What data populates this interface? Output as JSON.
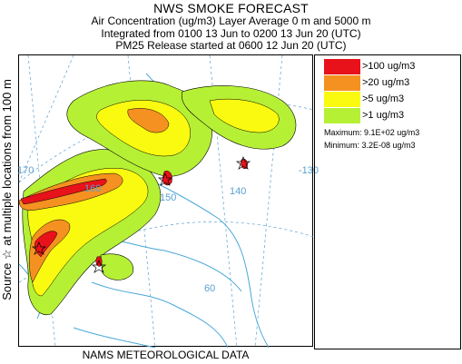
{
  "header": {
    "title": "NWS SMOKE FORECAST",
    "line2": "Air Concentration (ug/m3) Layer Average     0 m and  5000 m",
    "line3": "Integrated from 0100 13 Jun to 0200 13 Jun 20 (UTC)",
    "line4": "PM25 Release started at 0600 12 Jun 20 (UTC)"
  },
  "side_label": "Source ☆  at multiple locations    from   100 m",
  "footer": "NAMS METEOROLOGICAL DATA",
  "legend": {
    "items": [
      {
        "label": ">100 ug/m3",
        "color": "#e8121a"
      },
      {
        "label": ">20 ug/m3",
        "color": "#f59120"
      },
      {
        "label": ">5 ug/m3",
        "color": "#fafa10"
      },
      {
        "label": ">1 ug/m3",
        "color": "#b5f035"
      }
    ],
    "maximum": "Maximum: 9.1E+02 ug/m3",
    "minimum": "Minimum: 3.2E-08 ug/m3"
  },
  "map": {
    "longitude_labels": [
      "170",
      "160",
      "150",
      "140",
      "-130"
    ],
    "latitude_labels": [
      "60"
    ],
    "colors": {
      "coast": "#4aa8d8",
      "graticule": "#5aa0d0",
      "contour": "#000000"
    }
  }
}
